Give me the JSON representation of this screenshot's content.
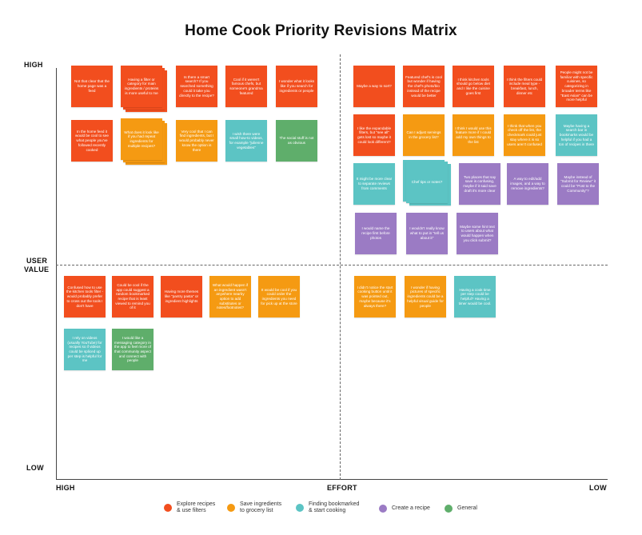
{
  "title": "Home Cook Priority Revisions Matrix",
  "axes": {
    "y_high": "HIGH",
    "y_mid_line1": "USER",
    "y_mid_line2": "VALUE",
    "y_low": "LOW",
    "x_high": "HIGH",
    "x_mid": "EFFORT",
    "x_low": "LOW"
  },
  "colors": {
    "explore": "#f24e1e",
    "grocery": "#f59a12",
    "bookmark": "#5cc4c4",
    "recipe": "#9b7bc4",
    "general": "#5fae6b"
  },
  "legend": [
    {
      "label_line1": "Explore recipes",
      "label_line2": "& use filters",
      "color": "#f24e1e"
    },
    {
      "label_line1": "Save ingredients",
      "label_line2": "to grocery list",
      "color": "#f59a12"
    },
    {
      "label_line1": "Finding bookmarked",
      "label_line2": "& start cooking",
      "color": "#5cc4c4"
    },
    {
      "label_line1": "Create a recipe",
      "label_line2": "",
      "color": "#9b7bc4"
    },
    {
      "label_line1": "General",
      "label_line2": "",
      "color": "#5fae6b"
    }
  ],
  "notes": {
    "n1": "Not that clear that the home page was a feed",
    "n2": "Having a filter or category for main ingredients / proteins is more useful to me",
    "n3": "Is there a smart search? If you searched something could it take you directly to the recipe?",
    "n4": "Cool if it weren't famous chefs, but someone's grandma featured",
    "n5": "I wonder what it looks like if you search for ingredients or people",
    "n6": "In the home feed it would be cool to see what people you've followed recently cooked",
    "n7": "What does it look like if you had repeat ingredients for multiple recipes?",
    "n8": "Very cool that I can find ingredients, but I would probably never know the option is there",
    "n9": "I wish there were small how-to videos, for example \"julienne vegetables\"",
    "n10": "The social stuff is not as obvious",
    "n11": "Maybe a way to sort?",
    "n12": "Featured chef's is cool but wonder if having the chef's photo/bio instead of the recipe would be better",
    "n13": "I think kitchen tools should go below diet and I like the cuisine goes first",
    "n14": "I think the filters could include meal type - breakfast, lunch, dinner etc",
    "n15": "People might not be familiar with specific cuisines, so categorizing in broader terms like \"East Asian\" can be more helpful",
    "n16": "I like the expandable filters, but \"see all\" gets lost so maybe it could look different?",
    "n17": "Can I adjust servings in the grocery list?",
    "n18": "I think I would use this feature more if I could add my own things to the list",
    "n19": "I think that when you check off the list, the checkmark could just stay where it is so users aren't confused",
    "n20": "Maybe having a search bar in bookmarks would be helpful if you had a ton of recipes in there",
    "n21": "It might be more clear to separate reviews from comments",
    "n22": "Chef tips or notes?",
    "n23": "Two places that say save is confusing, maybe if it said save draft it's more clear",
    "n24": "A way to edit/add images, and a way to remove ingredients?",
    "n25": "Maybe instead of \"Submit for Review\" it could be \"Post to the Community\"?",
    "n26": "I would name the recipe first before photos",
    "n27": "I wouldn't really know what to put in \"tell us about it\"",
    "n28": "Maybe some hint text to users about what would happen when you click submit?",
    "n29": "Confused how to use the kitchen tools filter - would probably prefer to cross out the tools I don't have",
    "n30": "Could be cool if the app could suggest a random bookmarked recipe that is least viewed to remind you of it",
    "n31": "Having more themes like \"pantry pasta\" or ingredient highlights",
    "n32": "What would happen if an ingredient wasn't anywhere nearby option to add substitutes or notes/footnotes?",
    "n33": "It would be cool if you could order the ingredients you need for pick up at the store",
    "n34": "I didn't notice the start cooking button until it was pointed out, maybe because it's always there?",
    "n35": "I wonder if having pictures of specific ingredients could be a helpful visual guide for people",
    "n36": "Having a cook time per step could be helpful? Having a timer would be cool.",
    "n37": "I rely on videos (usually YouTube) for recipes so if videos could be spliced up per step is helpful for me",
    "n38": "I would like a messaging category in the app to feel more of that community aspect and connect with people"
  }
}
